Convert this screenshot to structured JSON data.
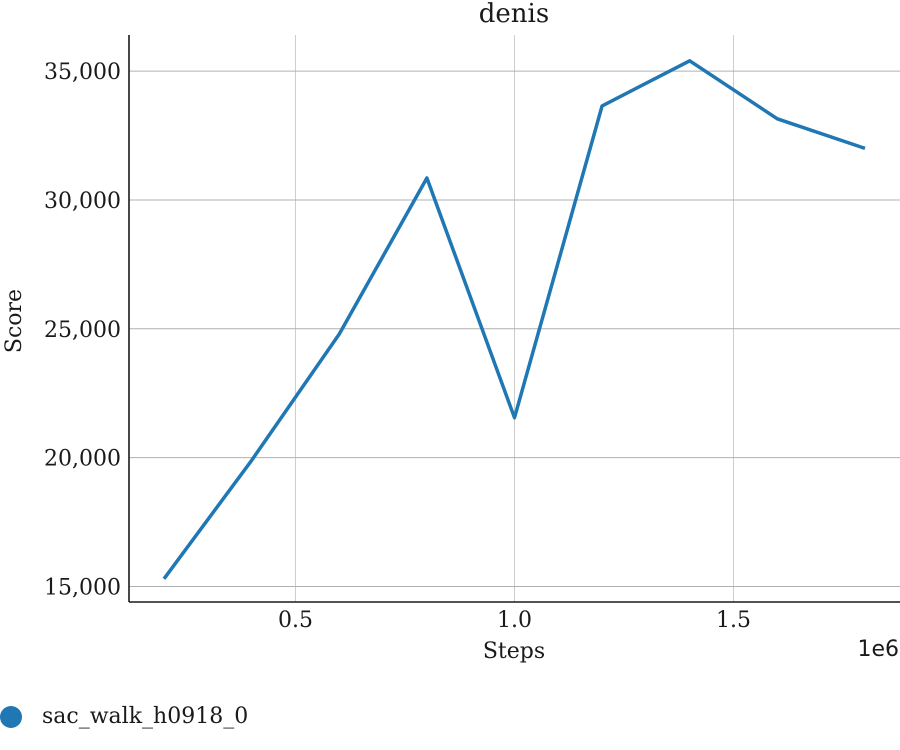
{
  "chart_data": {
    "type": "line",
    "title": "denis",
    "xlabel": "Steps",
    "ylabel": "Score",
    "x_offset_label": "1e6",
    "xlim": [
      0.12,
      1.88
    ],
    "ylim": [
      14400,
      36400
    ],
    "x_ticks": [
      0.5,
      1.0,
      1.5
    ],
    "x_tick_labels": [
      "0.5",
      "1.0",
      "1.5"
    ],
    "y_ticks": [
      15000,
      20000,
      25000,
      30000,
      35000
    ],
    "y_tick_labels": [
      "15,000",
      "20,000",
      "25,000",
      "30,000",
      "35,000"
    ],
    "grid": true,
    "legend_position": "bottom-left",
    "series": [
      {
        "name": "sac_walk_h0918_0",
        "color": "#1f77b4",
        "x": [
          0.2,
          0.4,
          0.6,
          0.8,
          1.0,
          1.2,
          1.4,
          1.6,
          1.8
        ],
        "y": [
          15300,
          19900,
          24800,
          30850,
          21550,
          33650,
          35400,
          33150,
          32000
        ]
      }
    ]
  }
}
